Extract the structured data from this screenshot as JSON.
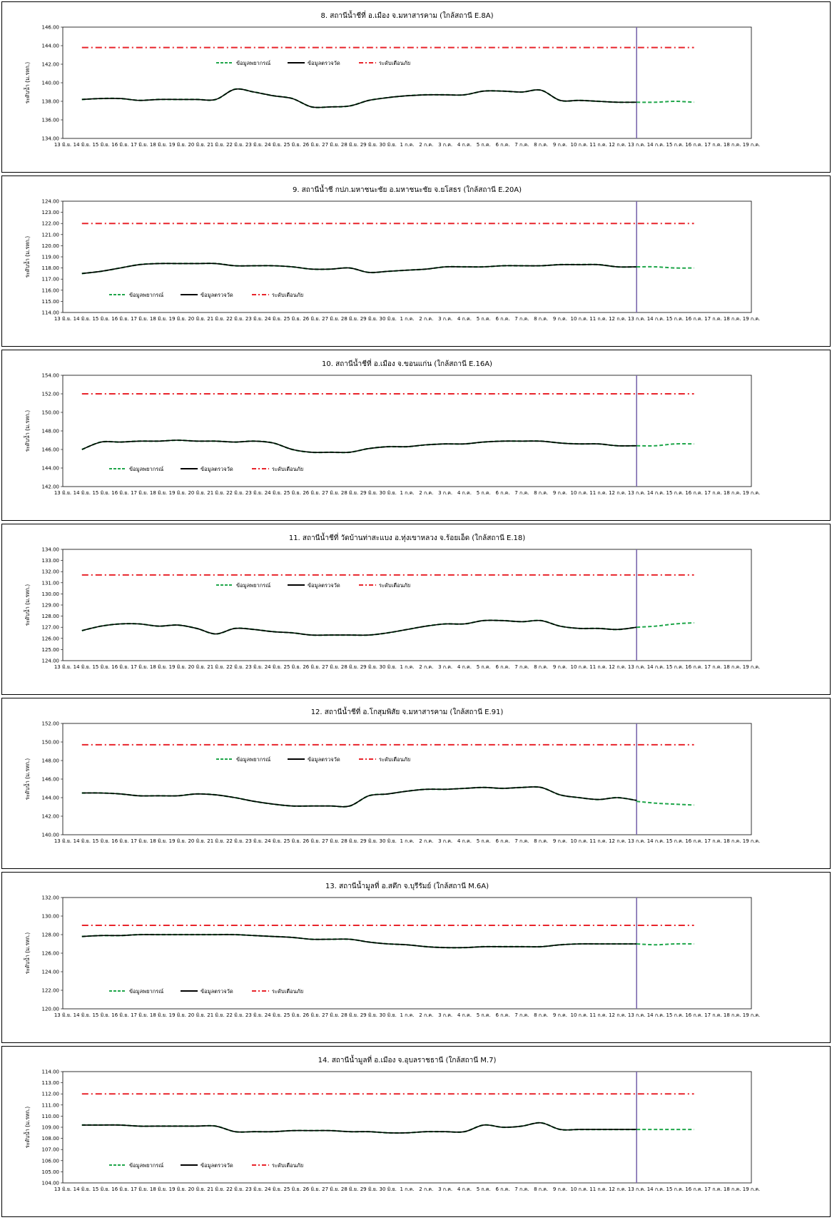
{
  "x_labels": [
    "13 มิ.ย.",
    "14 มิ.ย.",
    "15 มิ.ย.",
    "16 มิ.ย.",
    "17 มิ.ย.",
    "18 มิ.ย.",
    "19 มิ.ย.",
    "20 มิ.ย.",
    "21 มิ.ย.",
    "22 มิ.ย.",
    "23 มิ.ย.",
    "24 มิ.ย.",
    "25 มิ.ย.",
    "26 มิ.ย.",
    "27 มิ.ย.",
    "28 มิ.ย.",
    "29 มิ.ย.",
    "30 มิ.ย.",
    "1 ก.ค.",
    "2 ก.ค.",
    "3 ก.ค.",
    "4 ก.ค.",
    "5 ก.ค.",
    "6 ก.ค.",
    "7 ก.ค.",
    "8 ก.ค.",
    "9 ก.ค.",
    "10 ก.ค.",
    "11 ก.ค.",
    "12 ก.ค.",
    "13 ก.ค.",
    "14 ก.ค.",
    "15 ก.ค.",
    "16 ก.ค.",
    "17 ก.ค.",
    "18 ก.ค.",
    "19 ก.ค."
  ],
  "colors": {
    "forecast": "#1FA64A",
    "observed": "#000000",
    "warning": "#E8242B",
    "today_line": "#7B68AE"
  },
  "legend": {
    "forecast": "ข้อมูลพยากรณ์",
    "observed": "ข้อมูลตรวจวัด",
    "warning": "ระดับเตือนภัย"
  },
  "chart_data": [
    {
      "type": "line",
      "title": "8. สถานีน้ำชีที่ อ.เมือง จ.มหาสารคาม (ใกล้สถานี E.8A)",
      "ylabel": "ระดับน้ำ (ม.รทก.)",
      "ylim": [
        134,
        146
      ],
      "yticks": [
        "134.00",
        "136.00",
        "138.00",
        "140.00",
        "142.00",
        "144.00",
        "146.00"
      ],
      "warning_level": 143.8,
      "legend_position": "top-left",
      "observed": {
        "x_start": 1,
        "values": [
          138.2,
          138.3,
          138.3,
          138.1,
          138.2,
          138.2,
          138.2,
          138.2,
          139.3,
          139.0,
          138.6,
          138.3,
          137.4,
          137.4,
          137.5,
          138.1,
          138.4,
          138.6,
          138.7,
          138.7,
          138.7,
          139.1,
          139.1,
          139.0,
          139.2,
          138.1,
          138.1,
          138.0,
          137.9,
          137.9
        ]
      },
      "forecast": {
        "x_start": 30,
        "values": [
          137.9,
          137.9,
          138.0,
          137.9
        ]
      },
      "today_index": 30
    },
    {
      "type": "line",
      "title": "9. สถานีน้ำชี กปภ.มหาชนะชัย อ.มหาชนะชัย จ.ยโสธร (ใกล้สถานี E.20A)",
      "ylabel": "ระดับน้ำ (ม.รทก.)",
      "ylim": [
        114,
        124
      ],
      "yticks": [
        "114.00",
        "115.00",
        "116.00",
        "117.00",
        "118.00",
        "119.00",
        "120.00",
        "121.00",
        "122.00",
        "123.00",
        "124.00"
      ],
      "warning_level": 122.0,
      "legend_position": "bottom-left",
      "observed": {
        "x_start": 1,
        "values": [
          117.5,
          117.7,
          118.0,
          118.3,
          118.4,
          118.4,
          118.4,
          118.4,
          118.2,
          118.2,
          118.2,
          118.1,
          117.9,
          117.9,
          118.0,
          117.6,
          117.7,
          117.8,
          117.9,
          118.1,
          118.1,
          118.1,
          118.2,
          118.2,
          118.2,
          118.3,
          118.3,
          118.3,
          118.1,
          118.1
        ]
      },
      "forecast": {
        "x_start": 30,
        "values": [
          118.1,
          118.1,
          118.0,
          118.0
        ]
      },
      "today_index": 30
    },
    {
      "type": "line",
      "title": "10. สถานีน้ำชีที่ อ.เมือง จ.ขอนแก่น (ใกล้สถานี E.16A)",
      "ylabel": "ระดับน้ำ (ม.รทก.)",
      "ylim": [
        142,
        154
      ],
      "yticks": [
        "142.00",
        "144.00",
        "146.00",
        "148.00",
        "150.00",
        "152.00",
        "154.00"
      ],
      "warning_level": 152.0,
      "legend_position": "bottom-left",
      "observed": {
        "x_start": 1,
        "values": [
          146.0,
          146.8,
          146.8,
          146.9,
          146.9,
          147.0,
          146.9,
          146.9,
          146.8,
          146.9,
          146.7,
          146.0,
          145.7,
          145.7,
          145.7,
          146.1,
          146.3,
          146.3,
          146.5,
          146.6,
          146.6,
          146.8,
          146.9,
          146.9,
          146.9,
          146.7,
          146.6,
          146.6,
          146.4,
          146.4
        ]
      },
      "forecast": {
        "x_start": 30,
        "values": [
          146.4,
          146.4,
          146.6,
          146.6
        ]
      },
      "today_index": 30
    },
    {
      "type": "line",
      "title": "11. สถานีน้ำชีที่ วัดบ้านท่าสะแบง อ.ทุ่งเขาหลวง จ.ร้อยเอ็ด (ใกล้สถานี E.18)",
      "ylabel": "ระดับน้ำ (ม.รทก.)",
      "ylim": [
        124,
        134
      ],
      "yticks": [
        "124.00",
        "125.00",
        "126.00",
        "127.00",
        "128.00",
        "129.00",
        "130.00",
        "131.00",
        "132.00",
        "133.00",
        "134.00"
      ],
      "warning_level": 131.7,
      "legend_position": "top-left",
      "observed": {
        "x_start": 1,
        "values": [
          126.7,
          127.1,
          127.3,
          127.3,
          127.1,
          127.2,
          126.9,
          126.4,
          126.9,
          126.8,
          126.6,
          126.5,
          126.3,
          126.3,
          126.3,
          126.3,
          126.5,
          126.8,
          127.1,
          127.3,
          127.3,
          127.6,
          127.6,
          127.5,
          127.6,
          127.1,
          126.9,
          126.9,
          126.8,
          127.0
        ]
      },
      "forecast": {
        "x_start": 30,
        "values": [
          127.0,
          127.1,
          127.3,
          127.4
        ]
      },
      "today_index": 30
    },
    {
      "type": "line",
      "title": "12. สถานีน้ำชีที่ อ.โกสุมพิสัย จ.มหาสารคาม (ใกล้สถานี E.91)",
      "ylabel": "ระดับน้ำ (ม.รทก.)",
      "ylim": [
        140,
        152
      ],
      "yticks": [
        "140.00",
        "142.00",
        "144.00",
        "146.00",
        "148.00",
        "150.00",
        "152.00"
      ],
      "warning_level": 149.7,
      "legend_position": "top-left",
      "observed": {
        "x_start": 1,
        "values": [
          144.5,
          144.5,
          144.4,
          144.2,
          144.2,
          144.2,
          144.4,
          144.3,
          144.0,
          143.6,
          143.3,
          143.1,
          143.1,
          143.1,
          143.1,
          144.2,
          144.4,
          144.7,
          144.9,
          144.9,
          145.0,
          145.1,
          145.0,
          145.1,
          145.1,
          144.3,
          144.0,
          143.8,
          144.0,
          143.7
        ]
      },
      "forecast": {
        "x_start": 30,
        "values": [
          143.6,
          143.4,
          143.3,
          143.2
        ]
      },
      "today_index": 30
    },
    {
      "type": "line",
      "title": "13. สถานีน้ำมูลที่ อ.สตึก จ.บุรีรัมย์ (ใกล้สถานี M.6A)",
      "ylabel": "ระดับน้ำ (ม.รทก.)",
      "ylim": [
        120,
        132
      ],
      "yticks": [
        "120.00",
        "122.00",
        "124.00",
        "126.00",
        "128.00",
        "130.00",
        "132.00"
      ],
      "warning_level": 129.0,
      "legend_position": "bottom-left",
      "observed": {
        "x_start": 1,
        "values": [
          127.8,
          127.9,
          127.9,
          128.0,
          128.0,
          128.0,
          128.0,
          128.0,
          128.0,
          127.9,
          127.8,
          127.7,
          127.5,
          127.5,
          127.5,
          127.2,
          127.0,
          126.9,
          126.7,
          126.6,
          126.6,
          126.7,
          126.7,
          126.7,
          126.7,
          126.9,
          127.0,
          127.0,
          127.0,
          127.0
        ]
      },
      "forecast": {
        "x_start": 30,
        "values": [
          127.0,
          126.9,
          127.0,
          127.0
        ]
      },
      "today_index": 30
    },
    {
      "type": "line",
      "title": "14. สถานีน้ำมูลที่ อ.เมือง จ.อุบลราชธานี (ใกล้สถานี M.7)",
      "ylabel": "ระดับน้ำ (ม.รทก.)",
      "ylim": [
        104,
        114
      ],
      "yticks": [
        "104.00",
        "105.00",
        "106.00",
        "107.00",
        "108.00",
        "109.00",
        "110.00",
        "111.00",
        "112.00",
        "113.00",
        "114.00"
      ],
      "warning_level": 112.0,
      "legend_position": "bottom-left",
      "observed": {
        "x_start": 1,
        "values": [
          109.2,
          109.2,
          109.2,
          109.1,
          109.1,
          109.1,
          109.1,
          109.1,
          108.6,
          108.6,
          108.6,
          108.7,
          108.7,
          108.7,
          108.6,
          108.6,
          108.5,
          108.5,
          108.6,
          108.6,
          108.6,
          109.2,
          109.0,
          109.1,
          109.4,
          108.8,
          108.8,
          108.8,
          108.8,
          108.8
        ]
      },
      "forecast": {
        "x_start": 30,
        "values": [
          108.8,
          108.8,
          108.8,
          108.8
        ]
      },
      "today_index": 30
    }
  ]
}
